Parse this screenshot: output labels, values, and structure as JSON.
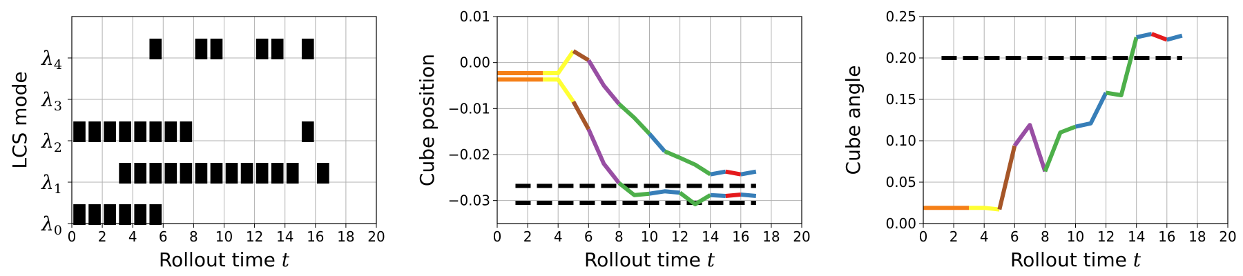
{
  "chart_data": [
    {
      "type": "timeline",
      "xlabel": "Rollout time",
      "xlabel_var": "t",
      "ylabel": "LCS mode",
      "xlim": [
        0,
        20
      ],
      "xticks": [
        "0",
        "2",
        "4",
        "6",
        "8",
        "10",
        "12",
        "14",
        "16",
        "18",
        "20"
      ],
      "ylim": [
        0,
        5
      ],
      "grid": true,
      "modes": [
        {
          "sym": "λ",
          "sub": "4",
          "label": "λ4",
          "level": 4,
          "active": [
            5.5,
            8.5,
            9.5,
            12.5,
            13.5,
            15.5
          ]
        },
        {
          "sym": "λ",
          "sub": "3",
          "label": "λ3",
          "level": 3,
          "active": []
        },
        {
          "sym": "λ",
          "sub": "2",
          "label": "λ2",
          "level": 2,
          "active": [
            0.5,
            1.5,
            2.5,
            3.5,
            4.5,
            5.5,
            6.5,
            7.5,
            15.5
          ]
        },
        {
          "sym": "λ",
          "sub": "1",
          "label": "λ1",
          "level": 1,
          "active": [
            3.5,
            4.5,
            5.5,
            6.5,
            7.5,
            8.5,
            9.5,
            10.5,
            11.5,
            12.5,
            13.5,
            14.5,
            16.5
          ]
        },
        {
          "sym": "λ",
          "sub": "0",
          "label": "λ0",
          "level": 0,
          "active": [
            0.5,
            1.5,
            2.5,
            3.5,
            4.5,
            5.5
          ]
        }
      ]
    },
    {
      "type": "line",
      "xlabel": "Rollout time",
      "xlabel_var": "t",
      "ylabel": "Cube position",
      "xlim": [
        0,
        20
      ],
      "xticks": [
        "0",
        "2",
        "4",
        "6",
        "8",
        "10",
        "12",
        "14",
        "16",
        "18",
        "20"
      ],
      "ylim": [
        -0.035,
        0.01
      ],
      "yticks": [
        "0.01",
        "0.00",
        "−0.01",
        "−0.02",
        "−0.03"
      ],
      "ytick_values": [
        0.01,
        0.0,
        -0.01,
        -0.02,
        -0.03
      ],
      "grid": true,
      "reference_lines": [
        {
          "y": -0.0268,
          "x": [
            1.2,
            17.0
          ],
          "style": "dashed",
          "color": "#000000"
        },
        {
          "y": -0.0305,
          "x": [
            1.2,
            17.0
          ],
          "style": "dashed",
          "color": "#000000"
        }
      ],
      "series": [
        {
          "color": "#f57f17",
          "x": [
            0,
            3
          ],
          "y": [
            -0.0023,
            -0.0023
          ]
        },
        {
          "color": "#f57f17",
          "x": [
            0,
            3
          ],
          "y": [
            -0.0037,
            -0.0037
          ]
        },
        {
          "color": "#ffff33",
          "x": [
            3,
            4,
            5
          ],
          "y": [
            -0.0023,
            -0.0023,
            0.0025
          ]
        },
        {
          "color": "#ffff33",
          "x": [
            3,
            4,
            5
          ],
          "y": [
            -0.0037,
            -0.0037,
            -0.0085
          ]
        },
        {
          "color": "#a65628",
          "x": [
            5,
            6
          ],
          "y": [
            0.0025,
            0.0005
          ]
        },
        {
          "color": "#a65628",
          "x": [
            5,
            6
          ],
          "y": [
            -0.0085,
            -0.0145
          ]
        },
        {
          "color": "#984ea3",
          "x": [
            6,
            7,
            8
          ],
          "y": [
            0.0005,
            -0.005,
            -0.009
          ]
        },
        {
          "color": "#984ea3",
          "x": [
            6,
            7,
            8
          ],
          "y": [
            -0.0145,
            -0.022,
            -0.0262
          ]
        },
        {
          "color": "#4daf4a",
          "x": [
            8,
            9,
            10
          ],
          "y": [
            -0.009,
            -0.012,
            -0.0155
          ]
        },
        {
          "color": "#4daf4a",
          "x": [
            8,
            9,
            10
          ],
          "y": [
            -0.0262,
            -0.0288,
            -0.0285
          ]
        },
        {
          "color": "#377eb8",
          "x": [
            10,
            11
          ],
          "y": [
            -0.0155,
            -0.0193
          ]
        },
        {
          "color": "#377eb8",
          "x": [
            10,
            11,
            12
          ],
          "y": [
            -0.0285,
            -0.028,
            -0.0283
          ]
        },
        {
          "color": "#4daf4a",
          "x": [
            11,
            12,
            13,
            14
          ],
          "y": [
            -0.0193,
            -0.0207,
            -0.0222,
            -0.0243
          ]
        },
        {
          "color": "#4daf4a",
          "x": [
            12,
            13,
            14
          ],
          "y": [
            -0.0283,
            -0.0308,
            -0.0288
          ]
        },
        {
          "color": "#377eb8",
          "x": [
            14,
            15
          ],
          "y": [
            -0.0243,
            -0.0237
          ]
        },
        {
          "color": "#377eb8",
          "x": [
            14,
            15
          ],
          "y": [
            -0.0288,
            -0.029
          ]
        },
        {
          "color": "#e41a1c",
          "x": [
            15,
            16
          ],
          "y": [
            -0.0237,
            -0.0243
          ]
        },
        {
          "color": "#e41a1c",
          "x": [
            15,
            16
          ],
          "y": [
            -0.029,
            -0.0287
          ]
        },
        {
          "color": "#377eb8",
          "x": [
            16,
            17
          ],
          "y": [
            -0.0243,
            -0.0237
          ]
        },
        {
          "color": "#377eb8",
          "x": [
            16,
            17
          ],
          "y": [
            -0.0287,
            -0.029
          ]
        }
      ]
    },
    {
      "type": "line",
      "xlabel": "Rollout time",
      "xlabel_var": "t",
      "ylabel": "Cube angle",
      "xlim": [
        0,
        20
      ],
      "xticks": [
        "0",
        "2",
        "4",
        "6",
        "8",
        "10",
        "12",
        "14",
        "16",
        "18",
        "20"
      ],
      "ylim": [
        0,
        0.25
      ],
      "yticks": [
        "0.25",
        "0.20",
        "0.15",
        "0.10",
        "0.05",
        "0.00"
      ],
      "ytick_values": [
        0.25,
        0.2,
        0.15,
        0.1,
        0.05,
        0.0
      ],
      "grid": true,
      "reference_lines": [
        {
          "y": 0.2,
          "x": [
            1.2,
            17.0
          ],
          "style": "dashed",
          "color": "#000000"
        }
      ],
      "series": [
        {
          "color": "#f57f17",
          "x": [
            0,
            3
          ],
          "y": [
            0.019,
            0.019
          ]
        },
        {
          "color": "#ffff33",
          "x": [
            3,
            4,
            5
          ],
          "y": [
            0.019,
            0.019,
            0.017
          ]
        },
        {
          "color": "#a65628",
          "x": [
            5,
            6
          ],
          "y": [
            0.017,
            0.094
          ]
        },
        {
          "color": "#984ea3",
          "x": [
            6,
            7,
            8
          ],
          "y": [
            0.094,
            0.119,
            0.063
          ]
        },
        {
          "color": "#4daf4a",
          "x": [
            8,
            9,
            10
          ],
          "y": [
            0.063,
            0.11,
            0.117
          ]
        },
        {
          "color": "#377eb8",
          "x": [
            10,
            11,
            12
          ],
          "y": [
            0.117,
            0.121,
            0.158
          ]
        },
        {
          "color": "#4daf4a",
          "x": [
            12,
            13,
            14
          ],
          "y": [
            0.158,
            0.155,
            0.225
          ]
        },
        {
          "color": "#377eb8",
          "x": [
            14,
            15
          ],
          "y": [
            0.225,
            0.229
          ]
        },
        {
          "color": "#e41a1c",
          "x": [
            15,
            16
          ],
          "y": [
            0.229,
            0.222
          ]
        },
        {
          "color": "#377eb8",
          "x": [
            16,
            17
          ],
          "y": [
            0.222,
            0.227
          ]
        }
      ]
    }
  ]
}
